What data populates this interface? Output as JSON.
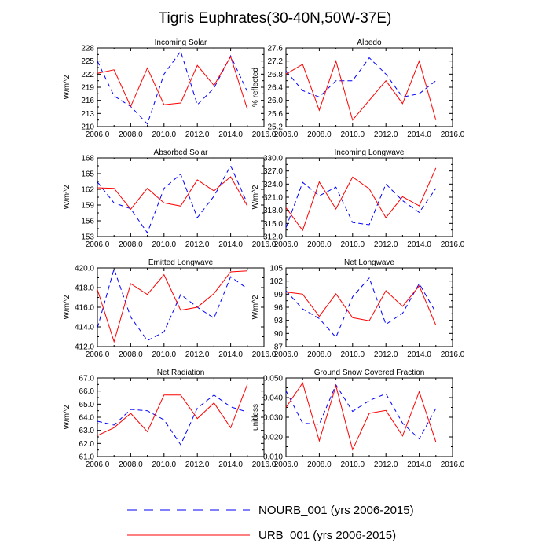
{
  "title": "Tigris Euphrates(30-40N,50W-37E)",
  "legend": [
    {
      "name": "NOURB_001 (yrs 2006-2015)",
      "color": "#0000ff",
      "dash": "dashed"
    },
    {
      "name": "URB_001 (yrs 2006-2015)",
      "color": "#ff0000",
      "dash": "solid"
    }
  ],
  "chart_data": [
    {
      "type": "line",
      "title": "Incoming Solar",
      "ylabel": "W/m^2",
      "xlim": [
        2006,
        2016
      ],
      "xticks": [
        "2006.0",
        "2008.0",
        "2010.0",
        "2012.0",
        "2014.0",
        "2016.0"
      ],
      "ylim": [
        210,
        228
      ],
      "yticks": [
        "210",
        "213",
        "216",
        "219",
        "222",
        "225",
        "228"
      ],
      "x": [
        2006,
        2007,
        2008,
        2009,
        2010,
        2011,
        2012,
        2013,
        2014,
        2015
      ],
      "series": [
        {
          "name": "NOURB_001",
          "values": [
            225.0,
            217.0,
            214.6,
            210.6,
            222.0,
            227.2,
            215.0,
            218.8,
            226.2,
            218.0
          ]
        },
        {
          "name": "URB_001",
          "values": [
            222.2,
            223.0,
            214.6,
            223.4,
            215.0,
            215.4,
            224.0,
            219.4,
            226.0,
            214.0
          ]
        }
      ]
    },
    {
      "type": "line",
      "title": "Albedo",
      "ylabel": "% reflected",
      "xlim": [
        2006,
        2016
      ],
      "xticks": [
        "2006.0",
        "2008.0",
        "2010.0",
        "2012.0",
        "2014.0",
        "2016.0"
      ],
      "ylim": [
        25.2,
        27.6
      ],
      "yticks": [
        "25.2",
        "25.6",
        "26.0",
        "26.4",
        "26.8",
        "27.2",
        "27.6"
      ],
      "x": [
        2006,
        2007,
        2008,
        2009,
        2010,
        2011,
        2012,
        2013,
        2014,
        2015
      ],
      "series": [
        {
          "name": "NOURB_001",
          "values": [
            26.9,
            26.3,
            26.1,
            26.6,
            26.6,
            27.3,
            26.8,
            26.1,
            26.2,
            26.6
          ]
        },
        {
          "name": "URB_001",
          "values": [
            26.8,
            27.1,
            25.7,
            27.2,
            25.4,
            26.0,
            26.6,
            25.9,
            27.2,
            25.4
          ]
        }
      ]
    },
    {
      "type": "line",
      "title": "Absorbed Solar",
      "ylabel": "W/m^2",
      "xlim": [
        2006,
        2016
      ],
      "xticks": [
        "2006.0",
        "2008.0",
        "2010.0",
        "2012.0",
        "2014.0",
        "2016.0"
      ],
      "ylim": [
        153,
        168
      ],
      "yticks": [
        "153",
        "156",
        "159",
        "162",
        "165",
        "168"
      ],
      "x": [
        2006,
        2007,
        2008,
        2009,
        2010,
        2011,
        2012,
        2013,
        2014,
        2015
      ],
      "series": [
        {
          "name": "NOURB_001",
          "values": [
            163.4,
            159.4,
            158.3,
            153.7,
            162.2,
            164.9,
            156.6,
            160.7,
            166.5,
            159.3
          ]
        },
        {
          "name": "URB_001",
          "values": [
            162.3,
            162.2,
            158.2,
            162.2,
            159.4,
            158.8,
            163.8,
            161.7,
            164.4,
            158.8
          ]
        }
      ]
    },
    {
      "type": "line",
      "title": "Incoming Longwave",
      "ylabel": "W/m^2",
      "xlim": [
        2006,
        2016
      ],
      "xticks": [
        "2006.0",
        "2008.0",
        "2010.0",
        "2012.0",
        "2014.0",
        "2016.0"
      ],
      "ylim": [
        312,
        330
      ],
      "yticks": [
        "312.0",
        "315.0",
        "318.0",
        "321.0",
        "324.0",
        "327.0",
        "330.0"
      ],
      "x": [
        2006,
        2007,
        2008,
        2009,
        2010,
        2011,
        2012,
        2013,
        2014,
        2015
      ],
      "series": [
        {
          "name": "NOURB_001",
          "values": [
            314.0,
            324.4,
            321.3,
            323.3,
            315.2,
            314.7,
            324.0,
            320.2,
            317.5,
            323.0
          ]
        },
        {
          "name": "URB_001",
          "values": [
            318.6,
            313.4,
            324.5,
            318.3,
            325.6,
            322.9,
            316.3,
            321.1,
            319.0,
            327.7
          ]
        }
      ]
    },
    {
      "type": "line",
      "title": "Emitted Longwave",
      "ylabel": "W/m^2",
      "xlim": [
        2006,
        2016
      ],
      "xticks": [
        "2006.0",
        "2008.0",
        "2010.0",
        "2012.0",
        "2014.0",
        "2016.0"
      ],
      "ylim": [
        412,
        420
      ],
      "yticks": [
        "412.0",
        "414.0",
        "416.0",
        "418.0",
        "420.0"
      ],
      "x": [
        2006,
        2007,
        2008,
        2009,
        2010,
        2011,
        2012,
        2013,
        2014,
        2015
      ],
      "series": [
        {
          "name": "NOURB_001",
          "values": [
            413.9,
            419.9,
            415.0,
            412.6,
            413.5,
            417.3,
            416.0,
            414.9,
            419.1,
            417.9
          ]
        },
        {
          "name": "URB_001",
          "values": [
            417.8,
            412.5,
            418.4,
            417.3,
            419.3,
            415.7,
            416.0,
            417.4,
            419.6,
            419.7
          ]
        }
      ]
    },
    {
      "type": "line",
      "title": "Net Longwave",
      "ylabel": "W/m^2",
      "xlim": [
        2006,
        2016
      ],
      "xticks": [
        "2006.0",
        "2008.0",
        "2010.0",
        "2012.0",
        "2014.0",
        "2016.0"
      ],
      "ylim": [
        87,
        105
      ],
      "yticks": [
        "87",
        "90",
        "93",
        "96",
        "99",
        "102",
        "105"
      ],
      "x": [
        2006,
        2007,
        2008,
        2009,
        2010,
        2011,
        2012,
        2013,
        2014,
        2015
      ],
      "series": [
        {
          "name": "NOURB_001",
          "values": [
            99.8,
            95.6,
            93.4,
            89.1,
            98.4,
            102.7,
            92.1,
            94.6,
            101.4,
            94.8
          ]
        },
        {
          "name": "URB_001",
          "values": [
            99.5,
            99.0,
            93.9,
            99.1,
            93.6,
            92.9,
            99.8,
            96.2,
            100.9,
            91.9
          ]
        }
      ]
    },
    {
      "type": "line",
      "title": "Net Radiation",
      "ylabel": "W/m^2",
      "xlim": [
        2006,
        2016
      ],
      "xticks": [
        "2006.0",
        "2008.0",
        "2010.0",
        "2012.0",
        "2014.0",
        "2016.0"
      ],
      "ylim": [
        61,
        67
      ],
      "yticks": [
        "61.0",
        "62.0",
        "63.0",
        "64.0",
        "65.0",
        "66.0",
        "67.0"
      ],
      "x": [
        2006,
        2007,
        2008,
        2009,
        2010,
        2011,
        2012,
        2013,
        2014,
        2015
      ],
      "series": [
        {
          "name": "NOURB_001",
          "values": [
            63.7,
            63.4,
            64.6,
            64.5,
            63.8,
            61.9,
            64.7,
            65.7,
            64.8,
            64.4
          ]
        },
        {
          "name": "URB_001",
          "values": [
            62.6,
            63.2,
            64.3,
            62.9,
            65.7,
            65.7,
            63.9,
            65.1,
            63.2,
            66.5
          ]
        }
      ]
    },
    {
      "type": "line",
      "title": "Ground Snow Covered Fraction",
      "ylabel": "unitless",
      "xlim": [
        2006,
        2016
      ],
      "xticks": [
        "2006.0",
        "2008.0",
        "2010.0",
        "2012.0",
        "2014.0",
        "2016.0"
      ],
      "ylim": [
        0.01,
        0.05
      ],
      "yticks": [
        "0.010",
        "0.020",
        "0.030",
        "0.040",
        "0.050"
      ],
      "x": [
        2006,
        2007,
        2008,
        2009,
        2010,
        2011,
        2012,
        2013,
        2014,
        2015
      ],
      "series": [
        {
          "name": "NOURB_001",
          "values": [
            0.0435,
            0.027,
            0.0265,
            0.0465,
            0.033,
            0.0385,
            0.042,
            0.027,
            0.019,
            0.0345
          ]
        },
        {
          "name": "URB_001",
          "values": [
            0.035,
            0.0475,
            0.018,
            0.046,
            0.0135,
            0.032,
            0.0335,
            0.0205,
            0.043,
            0.0175
          ]
        }
      ]
    }
  ]
}
